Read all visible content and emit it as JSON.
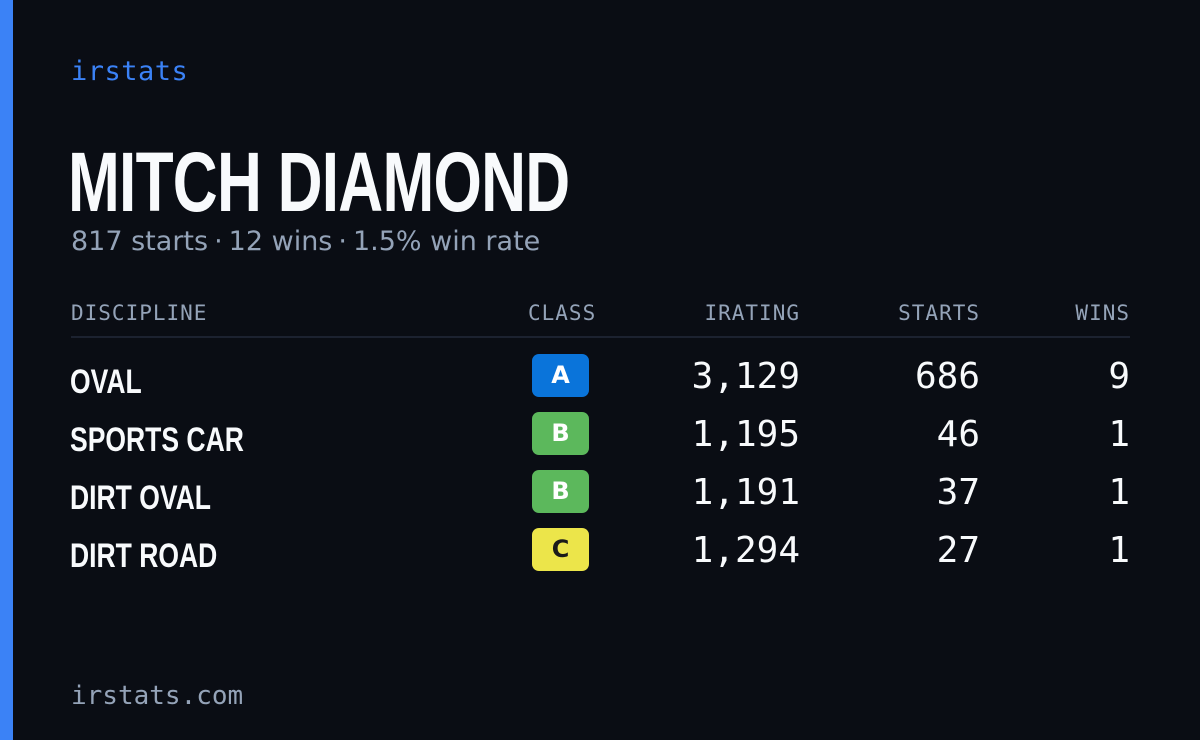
{
  "brand": "irstats",
  "player": {
    "name": "MITCH DIAMOND",
    "starts": "817 starts",
    "wins": "12 wins",
    "win_rate": "1.5% win rate",
    "separator": "·"
  },
  "table": {
    "headers": {
      "discipline": "DISCIPLINE",
      "class": "CLASS",
      "irating": "IRATING",
      "starts": "STARTS",
      "wins": "WINS"
    },
    "rows": [
      {
        "discipline": "OVAL",
        "class": "A",
        "class_bg": "#0a74da",
        "class_fg": "#ffffff",
        "irating": "3,129",
        "starts": "686",
        "wins": "9"
      },
      {
        "discipline": "SPORTS CAR",
        "class": "B",
        "class_bg": "#5cb85c",
        "class_fg": "#ffffff",
        "irating": "1,195",
        "starts": "46",
        "wins": "1"
      },
      {
        "discipline": "DIRT OVAL",
        "class": "B",
        "class_bg": "#5cb85c",
        "class_fg": "#ffffff",
        "irating": "1,191",
        "starts": "37",
        "wins": "1"
      },
      {
        "discipline": "DIRT ROAD",
        "class": "C",
        "class_bg": "#ece54a",
        "class_fg": "#1a1a1a",
        "irating": "1,294",
        "starts": "27",
        "wins": "1"
      }
    ]
  },
  "footer": "irstats.com",
  "colors": {
    "accent": "#3b82f6",
    "background": "#0a0d14",
    "text": "#f8fafc",
    "muted": "#94a3b8"
  }
}
